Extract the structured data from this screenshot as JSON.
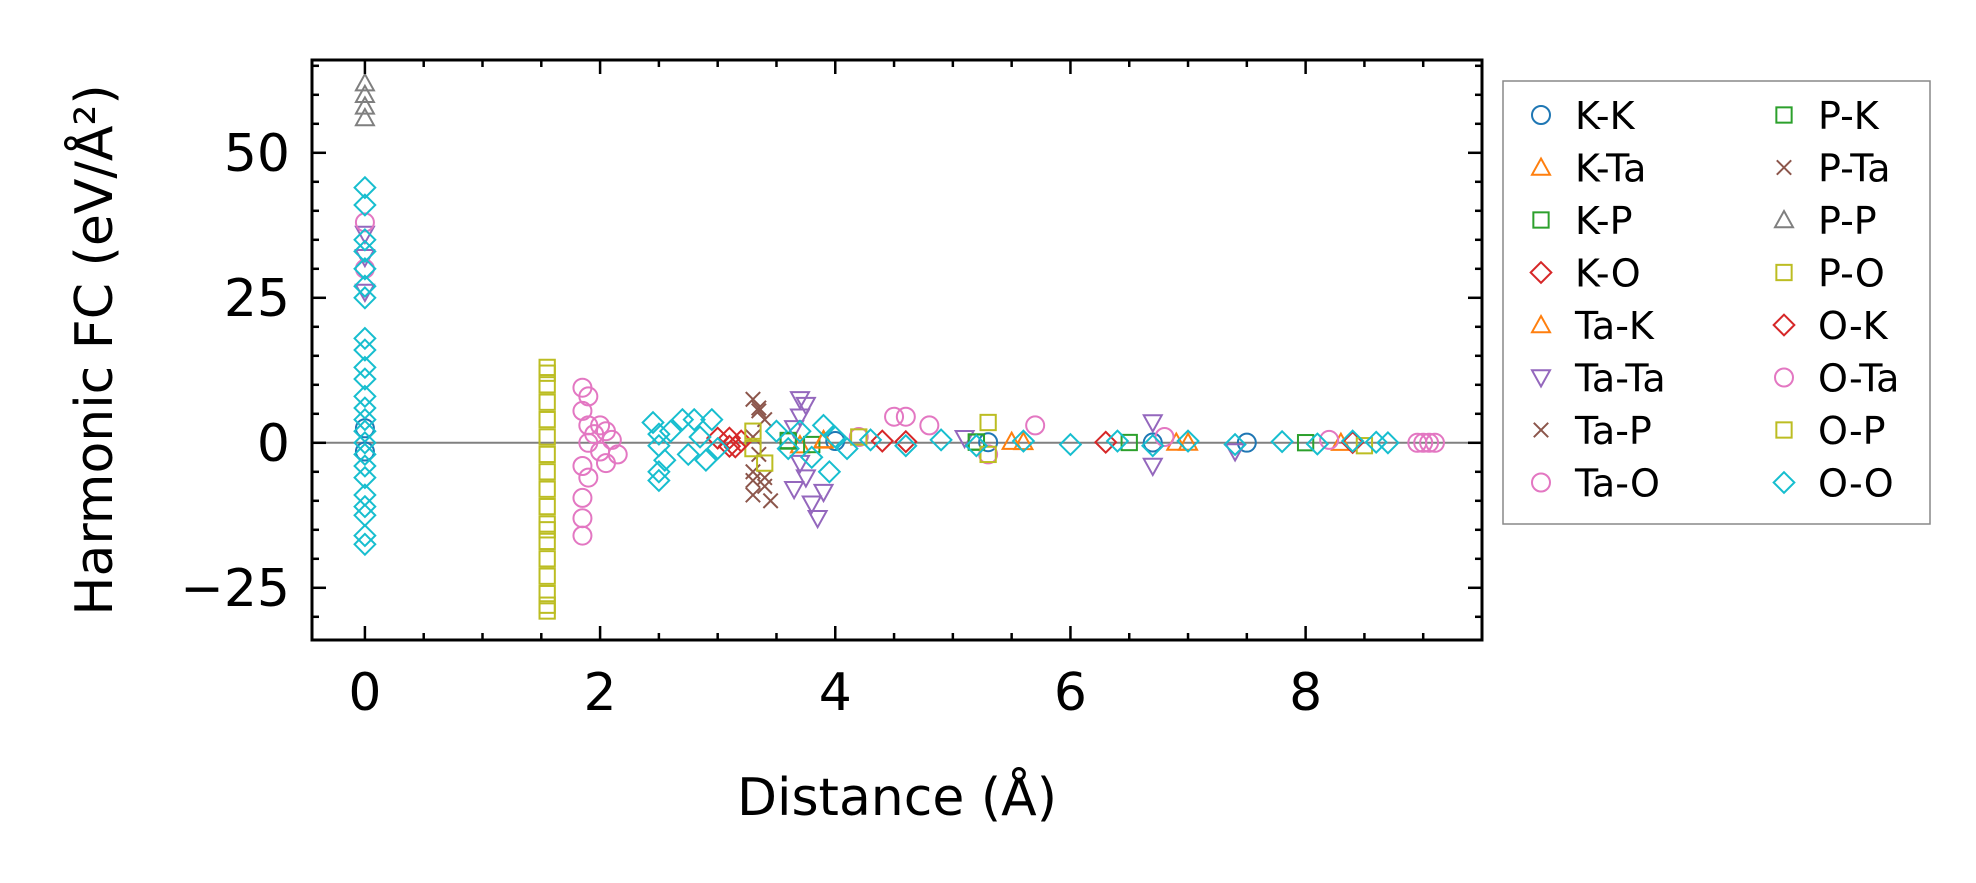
{
  "chart_data": {
    "type": "scatter",
    "title": "",
    "xlabel": "Distance (Å)",
    "ylabel": "Harmonic FC (eV/Å²)",
    "xlim": [
      -0.45,
      9.5
    ],
    "ylim": [
      -34,
      66
    ],
    "xticks": [
      0,
      2,
      4,
      6,
      8
    ],
    "xtick_labels": [
      "0",
      "2",
      "4",
      "6",
      "8"
    ],
    "yticks": [
      -25,
      0,
      25,
      50
    ],
    "ytick_labels": [
      "−25",
      "0",
      "25",
      "50"
    ],
    "zero_line": true,
    "grid": false,
    "legend_position": "outside-right",
    "series": [
      {
        "name": "K-K",
        "marker": "circle",
        "color": "#1f77b4",
        "points": [
          [
            0,
            2.5
          ],
          [
            0,
            -1.5
          ],
          [
            4.0,
            0.3
          ],
          [
            5.3,
            0.1
          ],
          [
            6.7,
            0.05
          ],
          [
            7.5,
            0.02
          ]
        ]
      },
      {
        "name": "K-Ta",
        "marker": "triangle-up",
        "color": "#ff7f0e",
        "points": [
          [
            3.9,
            0.5
          ],
          [
            3.7,
            -0.4
          ],
          [
            5.5,
            0.2
          ],
          [
            6.9,
            0.05
          ],
          [
            8.3,
            0.02
          ]
        ]
      },
      {
        "name": "K-P",
        "marker": "square",
        "color": "#2ca02c",
        "points": [
          [
            3.6,
            0.4
          ],
          [
            3.8,
            -0.3
          ],
          [
            5.2,
            0.15
          ],
          [
            6.5,
            0.05
          ],
          [
            8.0,
            0.02
          ]
        ]
      },
      {
        "name": "K-O",
        "marker": "diamond",
        "color": "#d62728",
        "points": [
          [
            3.0,
            0.8
          ],
          [
            3.1,
            -0.6
          ],
          [
            3.2,
            0.3
          ],
          [
            4.6,
            0.2
          ],
          [
            6.3,
            0.1
          ],
          [
            8.4,
            0.05
          ]
        ]
      },
      {
        "name": "Ta-K",
        "marker": "triangle-up",
        "color": "#ff7f0e",
        "points": [
          [
            3.9,
            0.4
          ],
          [
            5.6,
            0.15
          ],
          [
            7.0,
            0.05
          ]
        ]
      },
      {
        "name": "Ta-Ta",
        "marker": "triangle-down",
        "color": "#9467bd",
        "points": [
          [
            0,
            36
          ],
          [
            0,
            32
          ],
          [
            0,
            26
          ],
          [
            3.7,
            7.5
          ],
          [
            3.75,
            6.5
          ],
          [
            3.7,
            4.5
          ],
          [
            3.65,
            2.5
          ],
          [
            3.7,
            -3.5
          ],
          [
            3.75,
            -6
          ],
          [
            3.65,
            -8
          ],
          [
            3.8,
            -10.5
          ],
          [
            3.85,
            -13
          ],
          [
            3.9,
            -8.5
          ],
          [
            6.7,
            3.5
          ],
          [
            6.7,
            -4
          ],
          [
            5.1,
            0.8
          ],
          [
            7.4,
            -1.5
          ]
        ]
      },
      {
        "name": "Ta-P",
        "marker": "x",
        "color": "#8c564b",
        "points": [
          [
            3.3,
            7.5
          ],
          [
            3.35,
            5.5
          ],
          [
            3.4,
            4
          ],
          [
            3.3,
            1
          ],
          [
            3.35,
            -2
          ],
          [
            3.3,
            -5
          ],
          [
            3.4,
            -7.5
          ],
          [
            3.3,
            -9
          ],
          [
            3.45,
            -10
          ],
          [
            3.4,
            -6
          ]
        ]
      },
      {
        "name": "Ta-O",
        "marker": "circle",
        "color": "#e377c2",
        "points": [
          [
            0,
            38
          ],
          [
            0,
            30
          ],
          [
            1.85,
            9.5
          ],
          [
            1.85,
            5.5
          ],
          [
            1.9,
            3
          ],
          [
            1.95,
            1.5
          ],
          [
            1.9,
            0
          ],
          [
            2.0,
            -1.5
          ],
          [
            1.85,
            -4
          ],
          [
            1.9,
            -6
          ],
          [
            1.85,
            -9.5
          ],
          [
            1.85,
            -13
          ],
          [
            1.85,
            -16
          ],
          [
            2.05,
            2
          ],
          [
            2.1,
            0.5
          ],
          [
            2.15,
            -2
          ],
          [
            4.2,
            1
          ],
          [
            4.5,
            4.5
          ],
          [
            4.6,
            4.5
          ],
          [
            4.8,
            3
          ],
          [
            5.7,
            3
          ],
          [
            5.3,
            -2
          ],
          [
            6.8,
            1
          ],
          [
            8.2,
            0.5
          ]
        ]
      },
      {
        "name": "P-K",
        "marker": "square",
        "color": "#2ca02c",
        "points": [
          [
            3.6,
            0.3
          ],
          [
            5.2,
            0.1
          ]
        ]
      },
      {
        "name": "P-Ta",
        "marker": "x",
        "color": "#8c564b",
        "points": [
          [
            3.35,
            6
          ],
          [
            3.3,
            -6.5
          ]
        ]
      },
      {
        "name": "P-P",
        "marker": "triangle-up",
        "color": "#7f7f7f",
        "points": [
          [
            0,
            62
          ],
          [
            0,
            60
          ],
          [
            0,
            58
          ],
          [
            0,
            56
          ]
        ]
      },
      {
        "name": "P-O",
        "marker": "square",
        "color": "#bcbd22",
        "points": [
          [
            1.55,
            13
          ],
          [
            1.55,
            10
          ],
          [
            1.55,
            7
          ],
          [
            1.55,
            4
          ],
          [
            1.55,
            1
          ],
          [
            1.55,
            -2
          ],
          [
            1.55,
            -5
          ],
          [
            1.55,
            -8
          ],
          [
            1.55,
            -11
          ],
          [
            1.55,
            -14
          ],
          [
            1.55,
            -17
          ],
          [
            1.55,
            -20
          ],
          [
            1.55,
            -23
          ],
          [
            1.55,
            -26
          ],
          [
            1.55,
            -29
          ],
          [
            3.3,
            2
          ],
          [
            3.3,
            -1
          ],
          [
            3.4,
            -3.5
          ],
          [
            4.2,
            1
          ],
          [
            5.3,
            3.5
          ],
          [
            5.3,
            -2
          ],
          [
            8.5,
            -0.5
          ]
        ]
      },
      {
        "name": "O-K",
        "marker": "diamond",
        "color": "#d62728",
        "points": [
          [
            3.1,
            0.8
          ],
          [
            3.15,
            -0.7
          ],
          [
            4.4,
            0.3
          ]
        ]
      },
      {
        "name": "O-Ta",
        "marker": "circle",
        "color": "#e377c2",
        "points": [
          [
            1.9,
            8
          ],
          [
            2.0,
            3
          ],
          [
            2.05,
            -3.5
          ],
          [
            8.95,
            0
          ],
          [
            9.0,
            0
          ],
          [
            9.05,
            0
          ],
          [
            9.1,
            0
          ]
        ]
      },
      {
        "name": "O-P",
        "marker": "square",
        "color": "#bcbd22",
        "points": [
          [
            1.55,
            12
          ],
          [
            1.55,
            -15
          ],
          [
            1.55,
            -28
          ]
        ]
      },
      {
        "name": "O-O",
        "marker": "diamond",
        "color": "#17becf",
        "points": [
          [
            0,
            44
          ],
          [
            0,
            41
          ],
          [
            0,
            35
          ],
          [
            0,
            33
          ],
          [
            0,
            30
          ],
          [
            0,
            27
          ],
          [
            0,
            25
          ],
          [
            0,
            18
          ],
          [
            0,
            16
          ],
          [
            0,
            13
          ],
          [
            0,
            11
          ],
          [
            0,
            8
          ],
          [
            0,
            6
          ],
          [
            0,
            4
          ],
          [
            0,
            2
          ],
          [
            0,
            0
          ],
          [
            0,
            -2
          ],
          [
            0,
            -4
          ],
          [
            0,
            -6
          ],
          [
            0,
            -9
          ],
          [
            0,
            -11
          ],
          [
            0,
            -12.5
          ],
          [
            0,
            -16
          ],
          [
            0,
            -17.5
          ],
          [
            2.45,
            3.5
          ],
          [
            2.5,
            1.5
          ],
          [
            2.5,
            -0.5
          ],
          [
            2.55,
            -3
          ],
          [
            2.5,
            -5
          ],
          [
            2.5,
            -6.5
          ],
          [
            2.6,
            2
          ],
          [
            2.7,
            4
          ],
          [
            2.75,
            -2
          ],
          [
            2.8,
            4
          ],
          [
            2.85,
            1
          ],
          [
            2.9,
            -3
          ],
          [
            2.95,
            4
          ],
          [
            3.0,
            -1
          ],
          [
            3.5,
            2
          ],
          [
            3.6,
            -1
          ],
          [
            3.7,
            2
          ],
          [
            3.8,
            -2.5
          ],
          [
            3.9,
            3
          ],
          [
            3.95,
            -5
          ],
          [
            4.0,
            1
          ],
          [
            4.1,
            -1
          ],
          [
            4.3,
            0.5
          ],
          [
            4.6,
            -0.5
          ],
          [
            4.9,
            0.5
          ],
          [
            5.2,
            -0.5
          ],
          [
            5.6,
            0.3
          ],
          [
            6.0,
            -0.3
          ],
          [
            6.4,
            0.3
          ],
          [
            6.7,
            -0.5
          ],
          [
            7.0,
            0.3
          ],
          [
            7.4,
            -0.3
          ],
          [
            7.8,
            0.2
          ],
          [
            8.1,
            -0.2
          ],
          [
            8.4,
            0.3
          ],
          [
            8.6,
            0.1
          ],
          [
            8.7,
            0
          ]
        ]
      }
    ]
  }
}
